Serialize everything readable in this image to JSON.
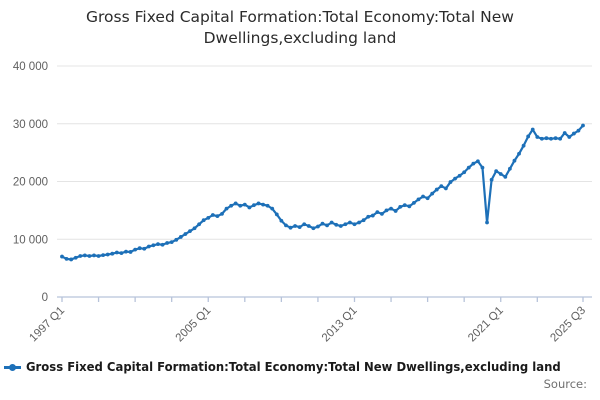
{
  "title": "Gross Fixed Capital Formation:Total Economy:Total New Dwellings,excluding land",
  "legend": {
    "label": "Gross Fixed Capital Formation:Total Economy:Total New Dwellings,excluding land",
    "marker": "line-with-dot"
  },
  "source_label": "Source:",
  "colors": {
    "line": "#1d70b8",
    "grid": "#e4e4e4",
    "axis": "#b7c3da",
    "tick_text": "#5f5f5f",
    "title_text": "#2b2b2b"
  },
  "chart_data": {
    "type": "line",
    "title": "Gross Fixed Capital Formation:Total Economy:Total New Dwellings,excluding land",
    "xlabel": "",
    "ylabel": "",
    "x_unit": "quarter",
    "x_start": "1997 Q1",
    "x_end": "2025 Q3",
    "ylim": [
      0,
      40000
    ],
    "grid": "horizontal",
    "legend_position": "bottom-left",
    "markers": true,
    "y_ticks": [
      0,
      10000,
      20000,
      30000,
      40000
    ],
    "y_tick_labels": [
      "0",
      "10 000",
      "20 000",
      "30 000",
      "40 000"
    ],
    "x_tick_labels": [
      "1997 Q1",
      "2005 Q1",
      "2013 Q1",
      "2021 Q1",
      "2025 Q3"
    ],
    "x_label_indices": [
      0,
      32,
      64,
      96,
      114
    ],
    "x_minor_tick_step": 8,
    "x_last_tick_index": 114,
    "values": [
      7000,
      6600,
      6500,
      6800,
      7100,
      7200,
      7100,
      7200,
      7100,
      7250,
      7350,
      7500,
      7700,
      7600,
      7850,
      7800,
      8200,
      8450,
      8350,
      8750,
      8950,
      9150,
      9050,
      9350,
      9500,
      9900,
      10400,
      10900,
      11400,
      11900,
      12600,
      13300,
      13700,
      14200,
      14000,
      14400,
      15300,
      15800,
      16200,
      15800,
      16000,
      15500,
      15900,
      16200,
      16000,
      15800,
      15300,
      14300,
      13200,
      12400,
      12000,
      12300,
      12100,
      12600,
      12300,
      11900,
      12200,
      12700,
      12400,
      12900,
      12500,
      12300,
      12600,
      12900,
      12600,
      12900,
      13300,
      13900,
      14100,
      14700,
      14400,
      15000,
      15300,
      14900,
      15600,
      15900,
      15700,
      16300,
      16900,
      17400,
      17100,
      17900,
      18600,
      19200,
      18800,
      19900,
      20500,
      21000,
      21600,
      22400,
      23100,
      23500,
      22400,
      12900,
      20300,
      21800,
      21300,
      20800,
      22200,
      23600,
      24800,
      26200,
      27800,
      29000,
      27700,
      27400,
      27500,
      27400,
      27500,
      27400,
      28400,
      27700,
      28300,
      28800,
      29700
    ]
  }
}
